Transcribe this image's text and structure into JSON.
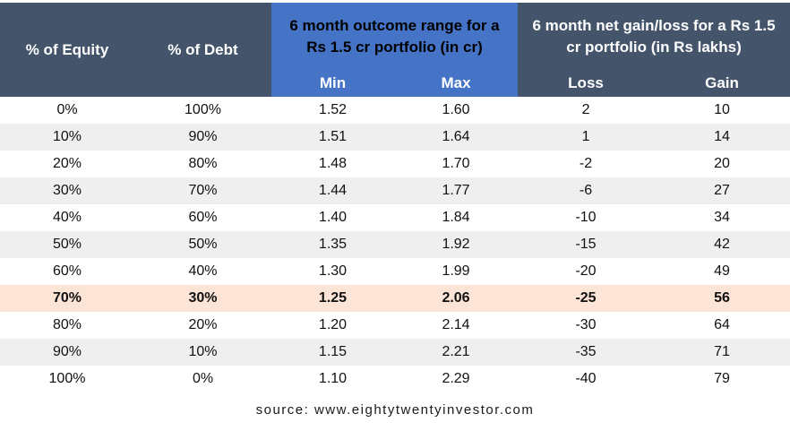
{
  "colors": {
    "header_dark": "#44546A",
    "header_blue": "#4573C6",
    "header_text_light": "#FFFFFF",
    "header_text_dark": "#000000",
    "row_stripe": "#EFEFEF",
    "row_highlight": "#FCE4D6",
    "body_text": "#111111"
  },
  "table": {
    "headers": {
      "equity": "% of Equity",
      "debt": "% of Debt",
      "outcome_group": "6 month outcome range for a Rs 1.5 cr portfolio (in cr)",
      "gainloss_group": "6 month net gain/loss for a Rs 1.5 cr portfolio (in Rs lakhs)",
      "min": "Min",
      "max": "Max",
      "loss": "Loss",
      "gain": "Gain"
    },
    "rows": [
      {
        "equity": "0%",
        "debt": "100%",
        "min": "1.52",
        "max": "1.60",
        "loss": "2",
        "gain": "10",
        "highlight": false
      },
      {
        "equity": "10%",
        "debt": "90%",
        "min": "1.51",
        "max": "1.64",
        "loss": "1",
        "gain": "14",
        "highlight": false
      },
      {
        "equity": "20%",
        "debt": "80%",
        "min": "1.48",
        "max": "1.70",
        "loss": "-2",
        "gain": "20",
        "highlight": false
      },
      {
        "equity": "30%",
        "debt": "70%",
        "min": "1.44",
        "max": "1.77",
        "loss": "-6",
        "gain": "27",
        "highlight": false
      },
      {
        "equity": "40%",
        "debt": "60%",
        "min": "1.40",
        "max": "1.84",
        "loss": "-10",
        "gain": "34",
        "highlight": false
      },
      {
        "equity": "50%",
        "debt": "50%",
        "min": "1.35",
        "max": "1.92",
        "loss": "-15",
        "gain": "42",
        "highlight": false
      },
      {
        "equity": "60%",
        "debt": "40%",
        "min": "1.30",
        "max": "1.99",
        "loss": "-20",
        "gain": "49",
        "highlight": false
      },
      {
        "equity": "70%",
        "debt": "30%",
        "min": "1.25",
        "max": "2.06",
        "loss": "-25",
        "gain": "56",
        "highlight": true
      },
      {
        "equity": "80%",
        "debt": "20%",
        "min": "1.20",
        "max": "2.14",
        "loss": "-30",
        "gain": "64",
        "highlight": false
      },
      {
        "equity": "90%",
        "debt": "10%",
        "min": "1.15",
        "max": "2.21",
        "loss": "-35",
        "gain": "71",
        "highlight": false
      },
      {
        "equity": "100%",
        "debt": "0%",
        "min": "1.10",
        "max": "2.29",
        "loss": "-40",
        "gain": "79",
        "highlight": false
      }
    ]
  },
  "footer": {
    "source_text": "source: www.eightytwentyinvestor.com"
  },
  "chart_data": {
    "type": "table",
    "column_groups": [
      {
        "label": "",
        "columns": [
          "% of Equity",
          "% of Debt"
        ]
      },
      {
        "label": "6 month outcome range for a Rs 1.5 cr portfolio (in cr)",
        "columns": [
          "Min",
          "Max"
        ]
      },
      {
        "label": "6 month net gain/loss for a Rs 1.5 cr portfolio (in Rs lakhs)",
        "columns": [
          "Loss",
          "Gain"
        ]
      }
    ],
    "columns": [
      "% of Equity",
      "% of Debt",
      "Min",
      "Max",
      "Loss",
      "Gain"
    ],
    "rows": [
      [
        "0%",
        "100%",
        1.52,
        1.6,
        2,
        10
      ],
      [
        "10%",
        "90%",
        1.51,
        1.64,
        1,
        14
      ],
      [
        "20%",
        "80%",
        1.48,
        1.7,
        -2,
        20
      ],
      [
        "30%",
        "70%",
        1.44,
        1.77,
        -6,
        27
      ],
      [
        "40%",
        "60%",
        1.4,
        1.84,
        -10,
        34
      ],
      [
        "50%",
        "50%",
        1.35,
        1.92,
        -15,
        42
      ],
      [
        "60%",
        "40%",
        1.3,
        1.99,
        -20,
        49
      ],
      [
        "70%",
        "30%",
        1.25,
        2.06,
        -25,
        56
      ],
      [
        "80%",
        "20%",
        1.2,
        2.14,
        -30,
        64
      ],
      [
        "90%",
        "10%",
        1.15,
        2.21,
        -35,
        71
      ],
      [
        "100%",
        "0%",
        1.1,
        2.29,
        -40,
        79
      ]
    ],
    "highlighted_row_index": 7,
    "source": "source: www.eightytwentyinvestor.com"
  }
}
